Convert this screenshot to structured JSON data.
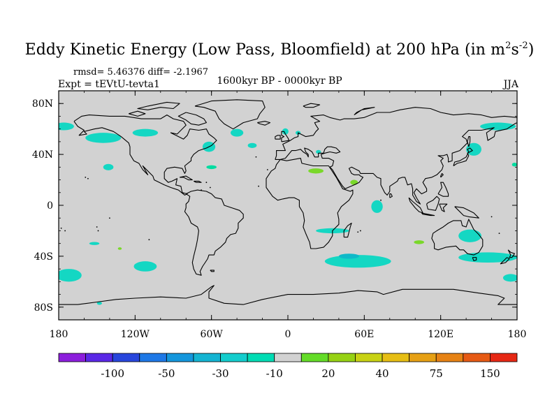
{
  "title": {
    "main": "Eddy Kinetic Energy (Low Pass, Bloomfield) at 200 hPa (in m",
    "sup1": "2",
    "mid": "s",
    "sup2": "-2",
    "end": ")"
  },
  "annotations": {
    "stats": "rmsd= 5.46376 diff= -2.1967",
    "experiment": "Expt = tEVtU-tevta1",
    "period": "1600kyr BP - 0000kyr BP",
    "season": "JJA"
  },
  "map": {
    "projection": "cylindrical-equidistant",
    "background_color": "#d2d2d2",
    "lat_ticks": [
      {
        "value": 80,
        "label": "80N"
      },
      {
        "value": 40,
        "label": "40N"
      },
      {
        "value": 0,
        "label": "0"
      },
      {
        "value": -40,
        "label": "40S"
      },
      {
        "value": -80,
        "label": "80S"
      }
    ],
    "lon_ticks": [
      {
        "value": -180,
        "label": "180"
      },
      {
        "value": -120,
        "label": "120W"
      },
      {
        "value": -60,
        "label": "60W"
      },
      {
        "value": 0,
        "label": "0"
      },
      {
        "value": 60,
        "label": "60E"
      },
      {
        "value": 120,
        "label": "120E"
      },
      {
        "value": 180,
        "label": "180"
      }
    ],
    "anomaly_regions": [
      {
        "lon": -176,
        "lat": 62,
        "rlon": 8,
        "rlat": 3,
        "color": "#14d7c3"
      },
      {
        "lon": -145,
        "lat": 53,
        "rlon": 14,
        "rlat": 4,
        "color": "#14d7c3"
      },
      {
        "lon": -112,
        "lat": 57,
        "rlon": 10,
        "rlat": 3,
        "color": "#14d7c3"
      },
      {
        "lon": -141,
        "lat": 30,
        "rlon": 4,
        "rlat": 2.5,
        "color": "#14d7c3"
      },
      {
        "lon": -62,
        "lat": 46,
        "rlon": 5,
        "rlat": 4,
        "color": "#14d7c3"
      },
      {
        "lon": -40,
        "lat": 57,
        "rlon": 5,
        "rlat": 3,
        "color": "#14d7c3"
      },
      {
        "lon": -28,
        "lat": 47,
        "rlon": 3.5,
        "rlat": 2,
        "color": "#14d7c3"
      },
      {
        "lon": -2,
        "lat": 58,
        "rlon": 2.5,
        "rlat": 2.5,
        "color": "#14d7c3"
      },
      {
        "lon": 8,
        "lat": 57,
        "rlon": 2,
        "rlat": 1.5,
        "color": "#14d7c3"
      },
      {
        "lon": 24,
        "lat": 42,
        "rlon": 2,
        "rlat": 1.5,
        "color": "#14d7c3"
      },
      {
        "lon": 165,
        "lat": 62,
        "rlon": 14,
        "rlat": 3,
        "color": "#14d7c3"
      },
      {
        "lon": 146,
        "lat": 44,
        "rlon": 6,
        "rlat": 5,
        "color": "#14d7c3"
      },
      {
        "lon": 178,
        "lat": 32,
        "rlon": 2,
        "rlat": 1.5,
        "color": "#00dca0"
      },
      {
        "lon": -60,
        "lat": 30,
        "rlon": 4,
        "rlat": 1.5,
        "color": "#00dca0"
      },
      {
        "lon": 22,
        "lat": 27,
        "rlon": 6,
        "rlat": 2,
        "color": "#7ad82a"
      },
      {
        "lon": 52,
        "lat": 18,
        "rlon": 3,
        "rlat": 2,
        "color": "#7ad82a"
      },
      {
        "lon": 70,
        "lat": -1,
        "rlon": 4.5,
        "rlat": 5,
        "color": "#14d7c3"
      },
      {
        "lon": 35,
        "lat": -20,
        "rlon": 13,
        "rlat": 2,
        "color": "#14d7c3"
      },
      {
        "lon": 55,
        "lat": -44,
        "rlon": 26,
        "rlat": 5,
        "color": "#14d7c3"
      },
      {
        "lon": 48,
        "lat": -40,
        "rlon": 8,
        "rlat": 2,
        "color": "#0fb9c8"
      },
      {
        "lon": 143,
        "lat": -24,
        "rlon": 9,
        "rlat": 5,
        "color": "#14d7c3"
      },
      {
        "lon": 157,
        "lat": -41,
        "rlon": 23,
        "rlat": 4,
        "color": "#14d7c3"
      },
      {
        "lon": 103,
        "lat": -29,
        "rlon": 4,
        "rlat": 1.5,
        "color": "#7ad82a"
      },
      {
        "lon": -152,
        "lat": -30,
        "rlon": 4,
        "rlat": 1.2,
        "color": "#14d7c3"
      },
      {
        "lon": -132,
        "lat": -34,
        "rlon": 1.5,
        "rlat": 1,
        "color": "#7ad82a"
      },
      {
        "lon": -172,
        "lat": -55,
        "rlon": 10,
        "rlat": 5,
        "color": "#14d7c3"
      },
      {
        "lon": -112,
        "lat": -48,
        "rlon": 9,
        "rlat": 4,
        "color": "#14d7c3"
      },
      {
        "lon": 175,
        "lat": -57,
        "rlon": 6,
        "rlat": 3,
        "color": "#14d7c3"
      },
      {
        "lon": -148,
        "lat": -77,
        "rlon": 2,
        "rlat": 1.2,
        "color": "#14d7c3"
      }
    ]
  },
  "colorbar": {
    "colors": [
      "#8c1edc",
      "#5a28e6",
      "#2846dc",
      "#1e78e6",
      "#1496dc",
      "#14b4d2",
      "#14cdcd",
      "#00dcb4",
      "#d2d2d2",
      "#64dc28",
      "#96d214",
      "#c8d214",
      "#e6be14",
      "#e6a014",
      "#e68214",
      "#e65a14",
      "#e62814"
    ],
    "labels": [
      {
        "after_box": 2,
        "text": "-100"
      },
      {
        "after_box": 4,
        "text": "-50"
      },
      {
        "after_box": 6,
        "text": "-30"
      },
      {
        "after_box": 8,
        "text": "-10"
      },
      {
        "after_box": 10,
        "text": "20"
      },
      {
        "after_box": 12,
        "text": "40"
      },
      {
        "after_box": 14,
        "text": "75"
      },
      {
        "after_box": 16,
        "text": "150"
      }
    ]
  }
}
